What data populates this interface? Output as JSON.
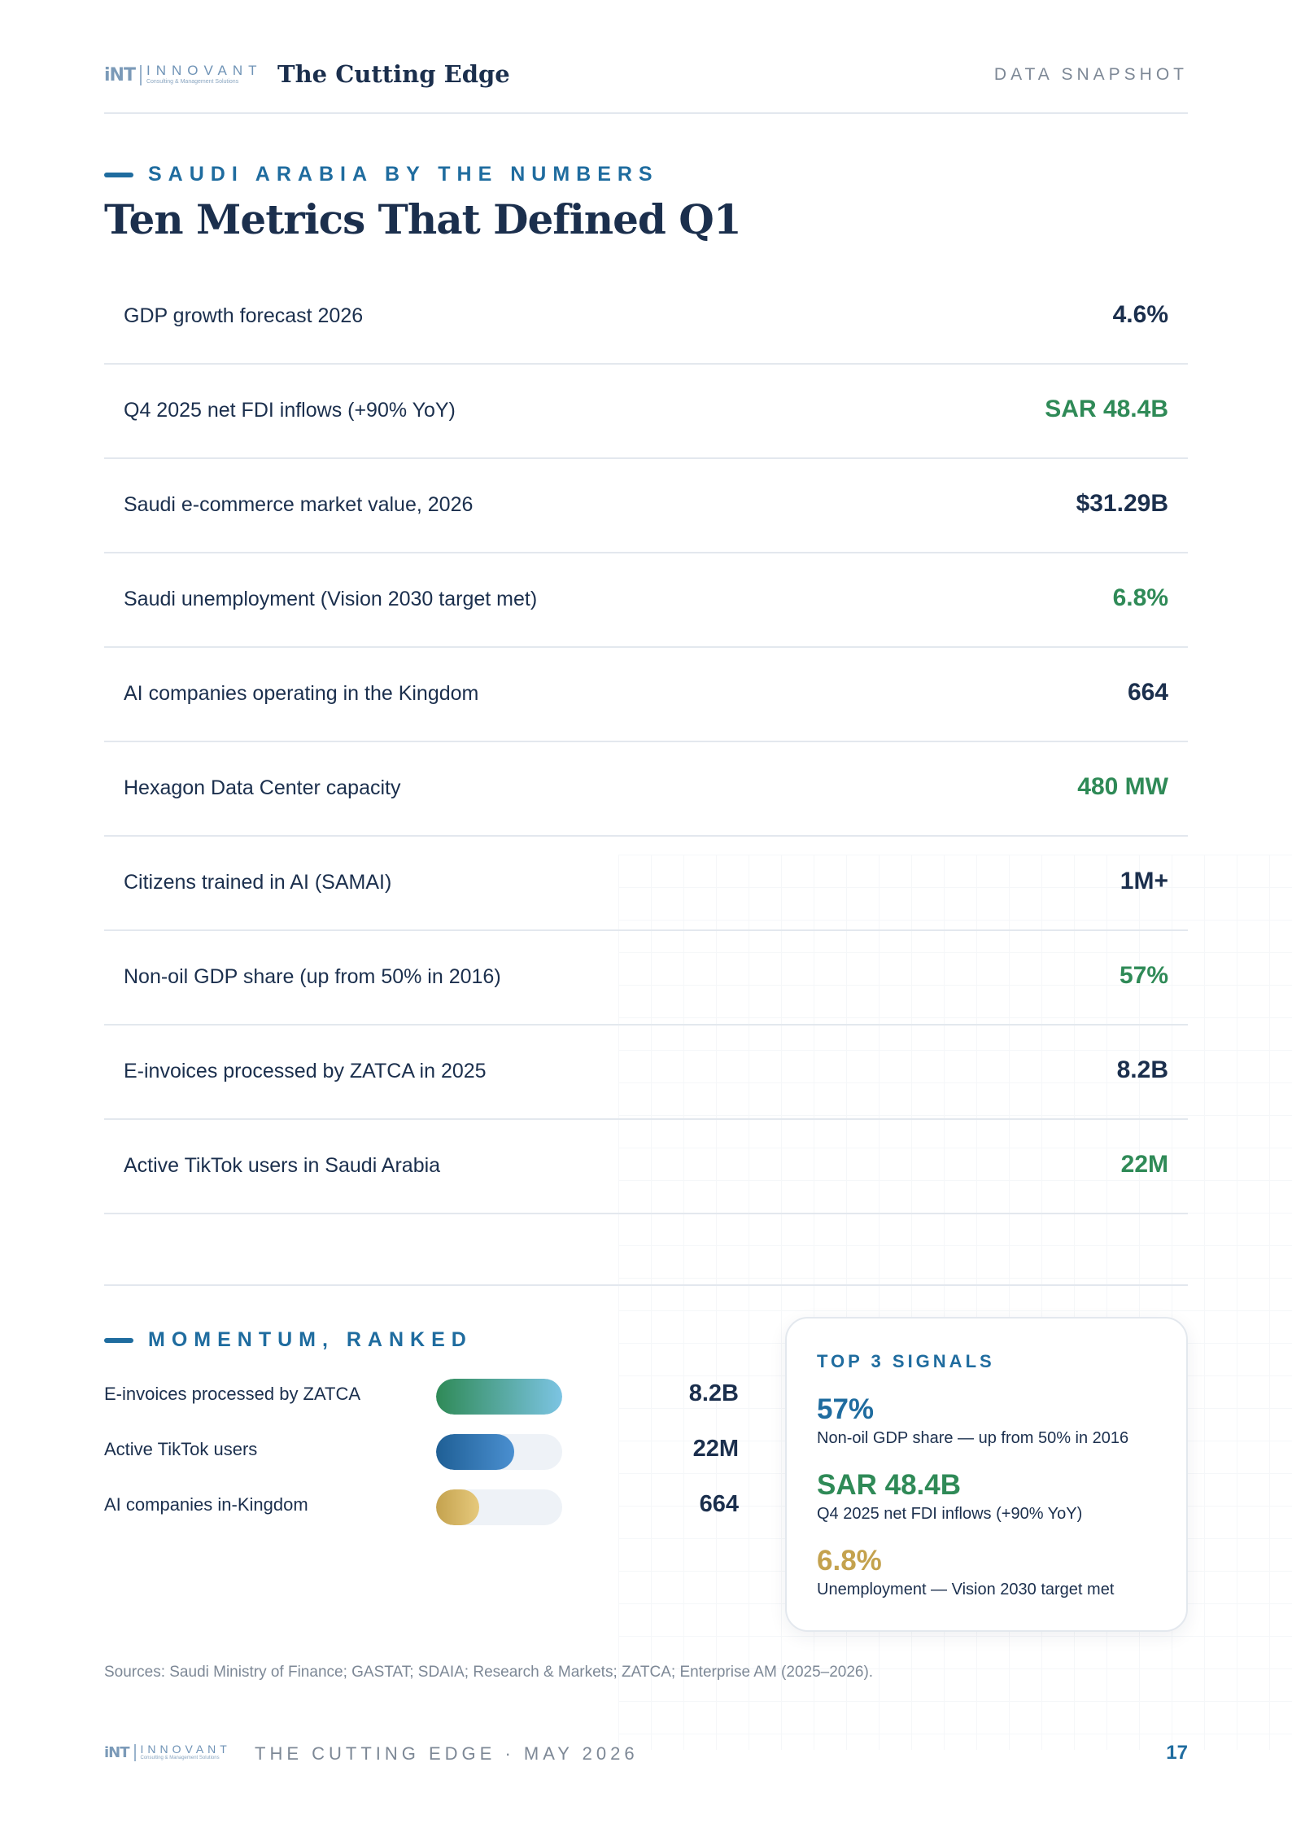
{
  "colors": {
    "navy": "#1b2f4d",
    "green": "#2f8a57",
    "blue": "#1f6c9f",
    "gold": "#c4a24e",
    "muted": "#7d8896"
  },
  "header": {
    "logo_mark": "iNT",
    "logo_name": "INNOVANT",
    "logo_sub": "Consulting & Management Solutions",
    "publication": "The Cutting Edge",
    "section": "DATA SNAPSHOT"
  },
  "numbers": {
    "eyebrow": "SAUDI ARABIA BY THE NUMBERS",
    "title": "Ten Metrics That Defined Q1",
    "metrics": [
      {
        "label": "GDP growth forecast 2026",
        "value": "4.6%",
        "color": "#1b2f4d"
      },
      {
        "label": "Q4 2025 net FDI inflows (+90% YoY)",
        "value": "SAR 48.4B",
        "color": "#2f8a57"
      },
      {
        "label": "Saudi e-commerce market value, 2026",
        "value": "$31.29B",
        "color": "#1b2f4d"
      },
      {
        "label": "Saudi unemployment (Vision 2030 target met)",
        "value": "6.8%",
        "color": "#2f8a57"
      },
      {
        "label": "AI companies operating in the Kingdom",
        "value": "664",
        "color": "#1b2f4d"
      },
      {
        "label": "Hexagon Data Center capacity",
        "value": "480 MW",
        "color": "#2f8a57"
      },
      {
        "label": "Citizens trained in AI (SAMAI)",
        "value": "1M+",
        "color": "#1b2f4d"
      },
      {
        "label": "Non-oil GDP share (up from 50% in 2016)",
        "value": "57%",
        "color": "#2f8a57"
      },
      {
        "label": "E-invoices processed by ZATCA in 2025",
        "value": "8.2B",
        "color": "#1b2f4d"
      },
      {
        "label": "Active TikTok users in Saudi Arabia",
        "value": "22M",
        "color": "#2f8a57"
      }
    ]
  },
  "momentum": {
    "eyebrow": "MOMENTUM, RANKED",
    "bars": [
      {
        "label": "E-invoices processed by ZATCA",
        "value": "8.2B",
        "fill": 1.0,
        "gradient": "linear-gradient(90deg,#2f8a57,#7cc4e3)"
      },
      {
        "label": "Active TikTok users",
        "value": "22M",
        "fill": 0.62,
        "gradient": "linear-gradient(90deg,#1f5f95,#4a8fd0)"
      },
      {
        "label": "AI companies in-Kingdom",
        "value": "664",
        "fill": 0.34,
        "gradient": "linear-gradient(90deg,#c4a24e,#e6c97c)"
      }
    ]
  },
  "signals": {
    "title": "TOP 3 SIGNALS",
    "items": [
      {
        "value": "57%",
        "desc": "Non-oil GDP share — up from 50% in 2016",
        "color": "#1f6c9f"
      },
      {
        "value": "SAR 48.4B",
        "desc": "Q4 2025 net FDI inflows (+90% YoY)",
        "color": "#2f8a57"
      },
      {
        "value": "6.8%",
        "desc": "Unemployment — Vision 2030 target met",
        "color": "#c4a24e"
      }
    ]
  },
  "sources": "Sources: Saudi Ministry of Finance; GASTAT; SDAIA; Research & Markets; ZATCA; Enterprise AM (2025–2026).",
  "footer": {
    "title": "THE CUTTING EDGE · MAY 2026",
    "page": "17"
  }
}
